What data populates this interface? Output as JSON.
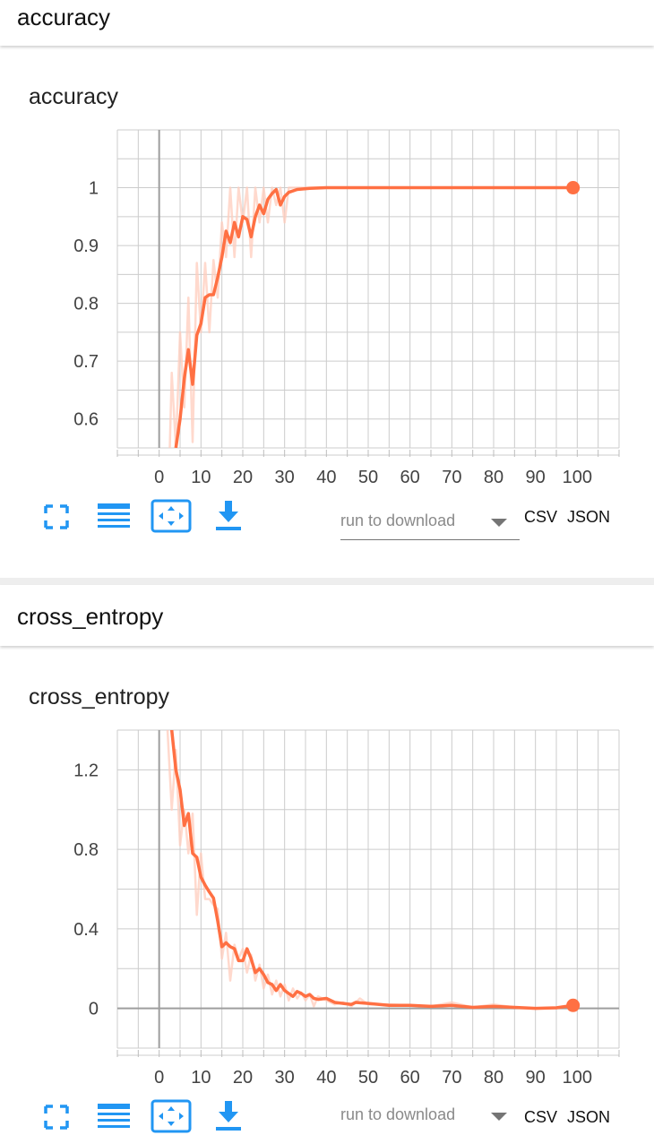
{
  "sections": [
    {
      "name": "accuracy",
      "card_title": "accuracy",
      "download": {
        "placeholder": "run to download",
        "csv_label": "CSV",
        "json_label": "JSON"
      }
    },
    {
      "name": "cross_entropy",
      "card_title": "cross_entropy",
      "download": {
        "placeholder": "run to download",
        "csv_label": "CSV",
        "json_label": "JSON"
      }
    }
  ],
  "icons": [
    "fullscreen-icon",
    "data-series-icon",
    "fit-domain-icon",
    "download-icon"
  ],
  "colors": {
    "smoothed": "#ff7043",
    "raw": "#ffccbc",
    "icon": "#2196f3",
    "grid": "#cccccc",
    "axis": "#9e9e9e"
  },
  "chart_data": [
    {
      "type": "line",
      "title": "accuracy",
      "xlim": [
        -10,
        110
      ],
      "ylim": [
        0.55,
        1.1
      ],
      "x_ticks": [
        0,
        10,
        20,
        30,
        40,
        50,
        60,
        70,
        80,
        90,
        100
      ],
      "y_ticks": [
        0.6,
        0.7,
        0.8,
        0.9,
        1
      ],
      "grid": true,
      "series": [
        {
          "role": "raw",
          "points": [
            [
              2,
              0.4
            ],
            [
              3,
              0.68
            ],
            [
              4,
              0.55
            ],
            [
              5,
              0.75
            ],
            [
              6,
              0.62
            ],
            [
              7,
              0.81
            ],
            [
              8,
              0.56
            ],
            [
              9,
              0.87
            ],
            [
              10,
              0.75
            ],
            [
              11,
              0.87
            ],
            [
              12,
              0.75
            ],
            [
              13,
              0.875
            ],
            [
              14,
              0.81
            ],
            [
              15,
              0.94
            ],
            [
              16,
              0.88
            ],
            [
              17,
              1
            ],
            [
              18,
              0.88
            ],
            [
              19,
              1
            ],
            [
              20,
              0.94
            ],
            [
              21,
              1
            ],
            [
              22,
              0.88
            ],
            [
              23,
              1
            ],
            [
              24,
              0.94
            ],
            [
              25,
              1
            ],
            [
              26,
              0.94
            ],
            [
              27,
              1
            ],
            [
              28,
              0.97
            ],
            [
              29,
              1
            ],
            [
              30,
              0.94
            ],
            [
              31,
              1
            ],
            [
              32,
              1
            ],
            [
              35,
              1
            ],
            [
              40,
              1
            ],
            [
              60,
              1
            ],
            [
              80,
              1
            ],
            [
              99,
              1
            ]
          ]
        },
        {
          "role": "smoothed",
          "points": [
            [
              4,
              0.55
            ],
            [
              5,
              0.6
            ],
            [
              6,
              0.67
            ],
            [
              7,
              0.72
            ],
            [
              8,
              0.66
            ],
            [
              9,
              0.745
            ],
            [
              10,
              0.765
            ],
            [
              11,
              0.81
            ],
            [
              12,
              0.815
            ],
            [
              13,
              0.815
            ],
            [
              14,
              0.845
            ],
            [
              15,
              0.88
            ],
            [
              16,
              0.925
            ],
            [
              17,
              0.905
            ],
            [
              18,
              0.94
            ],
            [
              19,
              0.915
            ],
            [
              20,
              0.95
            ],
            [
              21,
              0.945
            ],
            [
              22,
              0.915
            ],
            [
              23,
              0.95
            ],
            [
              24,
              0.97
            ],
            [
              25,
              0.955
            ],
            [
              26,
              0.98
            ],
            [
              27,
              0.99
            ],
            [
              28,
              0.997
            ],
            [
              29,
              0.97
            ],
            [
              30,
              0.985
            ],
            [
              31,
              0.992
            ],
            [
              33,
              0.997
            ],
            [
              36,
              0.999
            ],
            [
              40,
              1
            ],
            [
              60,
              1
            ],
            [
              80,
              1
            ],
            [
              99,
              1
            ]
          ]
        }
      ],
      "last_point": [
        99,
        1
      ]
    },
    {
      "type": "line",
      "title": "cross_entropy",
      "xlim": [
        -10,
        110
      ],
      "ylim": [
        -0.2,
        1.4
      ],
      "x_ticks": [
        0,
        10,
        20,
        30,
        40,
        50,
        60,
        70,
        80,
        90,
        100
      ],
      "y_ticks": [
        0,
        0.4,
        0.8,
        1.2
      ],
      "grid": true,
      "series": [
        {
          "role": "raw",
          "points": [
            [
              2,
              1.4
            ],
            [
              3,
              1.0
            ],
            [
              4,
              1.3
            ],
            [
              5,
              0.82
            ],
            [
              6,
              1.0
            ],
            [
              7,
              0.78
            ],
            [
              8,
              0.98
            ],
            [
              9,
              0.47
            ],
            [
              10,
              0.78
            ],
            [
              11,
              0.55
            ],
            [
              12,
              0.55
            ],
            [
              13,
              0.52
            ],
            [
              14,
              0.5
            ],
            [
              15,
              0.25
            ],
            [
              16,
              0.38
            ],
            [
              17,
              0.14
            ],
            [
              18,
              0.32
            ],
            [
              19,
              0.25
            ],
            [
              20,
              0.3
            ],
            [
              21,
              0.18
            ],
            [
              22,
              0.27
            ],
            [
              23,
              0.14
            ],
            [
              24,
              0.22
            ],
            [
              25,
              0.1
            ],
            [
              26,
              0.17
            ],
            [
              27,
              0.07
            ],
            [
              28,
              0.14
            ],
            [
              29,
              0.06
            ],
            [
              30,
              0.12
            ],
            [
              31,
              0.04
            ],
            [
              32,
              0.1
            ],
            [
              33,
              0.05
            ],
            [
              34,
              0.08
            ],
            [
              35,
              0.04
            ],
            [
              36,
              0.07
            ],
            [
              37,
              0.01
            ],
            [
              38,
              0.06
            ],
            [
              40,
              0.04
            ],
            [
              42,
              0.02
            ],
            [
              44,
              0.03
            ],
            [
              46,
              0.01
            ],
            [
              48,
              0.05
            ],
            [
              50,
              0.02
            ],
            [
              55,
              0.02
            ],
            [
              60,
              0.015
            ],
            [
              65,
              0.01
            ],
            [
              70,
              0.03
            ],
            [
              75,
              0.005
            ],
            [
              80,
              0.02
            ],
            [
              85,
              0.005
            ],
            [
              90,
              0.0
            ],
            [
              95,
              0.005
            ],
            [
              99,
              0.02
            ]
          ]
        },
        {
          "role": "smoothed",
          "points": [
            [
              3,
              1.4
            ],
            [
              4,
              1.2
            ],
            [
              5,
              1.1
            ],
            [
              6,
              0.92
            ],
            [
              7,
              0.98
            ],
            [
              8,
              0.78
            ],
            [
              9,
              0.76
            ],
            [
              10,
              0.66
            ],
            [
              11,
              0.62
            ],
            [
              12,
              0.585
            ],
            [
              13,
              0.555
            ],
            [
              14,
              0.44
            ],
            [
              15,
              0.31
            ],
            [
              16,
              0.33
            ],
            [
              17,
              0.31
            ],
            [
              18,
              0.3
            ],
            [
              19,
              0.24
            ],
            [
              20,
              0.24
            ],
            [
              21,
              0.3
            ],
            [
              22,
              0.25
            ],
            [
              23,
              0.18
            ],
            [
              24,
              0.2
            ],
            [
              25,
              0.17
            ],
            [
              26,
              0.13
            ],
            [
              27,
              0.12
            ],
            [
              28,
              0.09
            ],
            [
              29,
              0.12
            ],
            [
              30,
              0.09
            ],
            [
              31,
              0.075
            ],
            [
              32,
              0.06
            ],
            [
              33,
              0.085
            ],
            [
              34,
              0.075
            ],
            [
              35,
              0.06
            ],
            [
              36,
              0.07
            ],
            [
              37,
              0.05
            ],
            [
              38,
              0.045
            ],
            [
              40,
              0.05
            ],
            [
              42,
              0.03
            ],
            [
              44,
              0.025
            ],
            [
              46,
              0.02
            ],
            [
              47,
              0.03
            ],
            [
              50,
              0.025
            ],
            [
              55,
              0.015
            ],
            [
              60,
              0.015
            ],
            [
              65,
              0.01
            ],
            [
              70,
              0.015
            ],
            [
              75,
              0.005
            ],
            [
              80,
              0.01
            ],
            [
              85,
              0.005
            ],
            [
              90,
              0.0
            ],
            [
              95,
              0.003
            ],
            [
              99,
              0.015
            ]
          ]
        }
      ],
      "last_point": [
        99,
        0.015
      ]
    }
  ]
}
